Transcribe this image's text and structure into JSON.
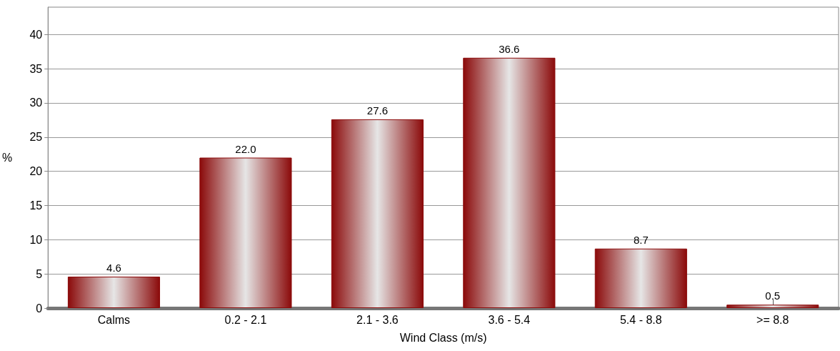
{
  "chart_data": {
    "type": "bar",
    "xlabel": "Wind Class (m/s)",
    "ylabel": "%",
    "categories": [
      "Calms",
      "0.2 - 2.1",
      "2.1 - 3.6",
      "3.6 - 5.4",
      "5.4 - 8.8",
      ">= 8.8"
    ],
    "values": [
      4.6,
      22.0,
      27.6,
      36.6,
      8.7,
      0.5
    ],
    "value_labels": [
      "4.6",
      "22.0",
      "27.6",
      "36.6",
      "8.7",
      "0.5"
    ],
    "color": "#8b0a0a",
    "ylim": [
      0,
      44
    ],
    "yticks": [
      0,
      5,
      10,
      15,
      20,
      25,
      30,
      35,
      40
    ],
    "grid": "y"
  }
}
